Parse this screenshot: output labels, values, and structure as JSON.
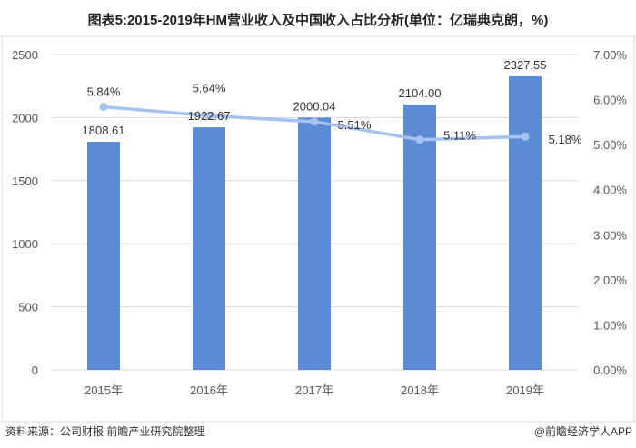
{
  "title": "图表5:2015-2019年HM营业收入及中国收入占比分析(单位：亿瑞典克朗，%)",
  "source": "资料来源：公司财报 前瞻产业研究院整理",
  "credit": "@前瞻经济学人APP",
  "watermark": "前瞻产业研究院",
  "colors": {
    "bar": "#5b8bd4",
    "line": "#a6c2f0",
    "grid": "#d9d9d9",
    "text": "#595959"
  },
  "chart_data": {
    "type": "bar",
    "title": "图表5:2015-2019年HM营业收入及中国收入占比分析(单位：亿瑞典克朗，%)",
    "categories": [
      "2015年",
      "2016年",
      "2017年",
      "2018年",
      "2019年"
    ],
    "series": [
      {
        "name": "营业收入",
        "type": "bar",
        "axis": "left",
        "values": [
          1808.61,
          1922.67,
          2000.04,
          2104.0,
          2327.55
        ],
        "labels": [
          "1808.61",
          "1922.67",
          "2000.04",
          "2104.00",
          "2327.55"
        ]
      },
      {
        "name": "中国收入占比",
        "type": "line",
        "axis": "right",
        "values": [
          5.84,
          5.64,
          5.51,
          5.11,
          5.18
        ],
        "labels": [
          "5.84%",
          "5.64%",
          "5.51%",
          "5.11%",
          "5.18%"
        ]
      }
    ],
    "left_axis": {
      "range": [
        0,
        2500
      ],
      "ticks": [
        "0",
        "500",
        "1000",
        "1500",
        "2000",
        "2500"
      ]
    },
    "right_axis": {
      "range": [
        0,
        7
      ],
      "ticks": [
        "0.00%",
        "1.00%",
        "2.00%",
        "3.00%",
        "4.00%",
        "5.00%",
        "6.00%",
        "7.00%"
      ]
    },
    "grid": true,
    "legend": "none"
  }
}
